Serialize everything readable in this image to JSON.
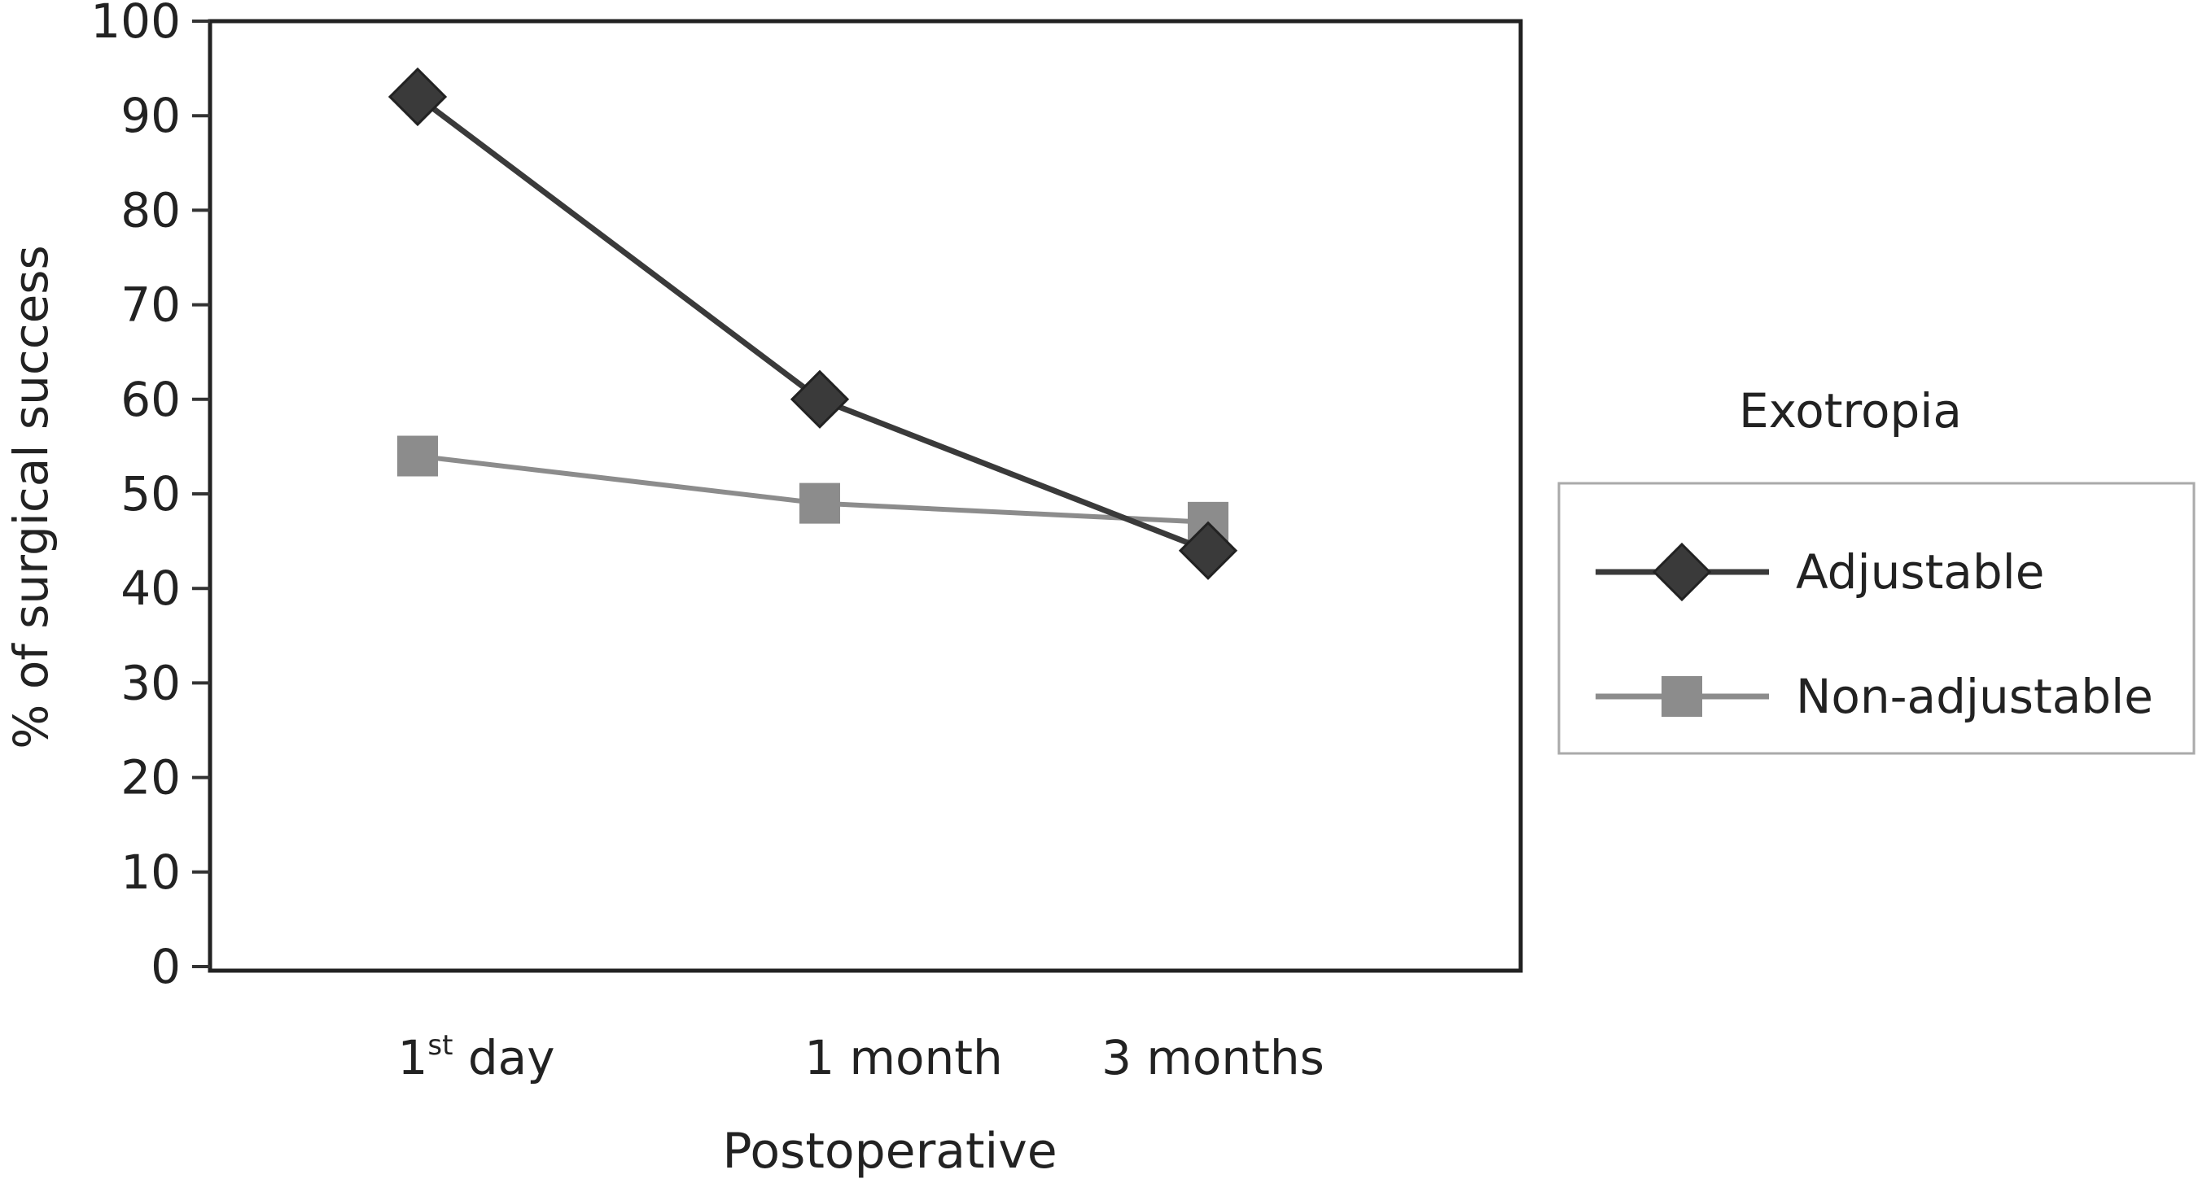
{
  "chart_data": {
    "type": "line",
    "title": "",
    "xlabel": "Postoperative",
    "ylabel": "% of surgical success",
    "categories": [
      "1st day",
      "1 month",
      "3 months"
    ],
    "category_labels": [
      {
        "main": "1",
        "sup": "st",
        "rest": " day"
      },
      {
        "main": "1 month",
        "sup": "",
        "rest": ""
      },
      {
        "main": "3 months",
        "sup": "",
        "rest": ""
      }
    ],
    "ylim": [
      0,
      100
    ],
    "yticks": [
      0,
      10,
      20,
      30,
      40,
      50,
      60,
      70,
      80,
      90,
      100
    ],
    "grid": false,
    "legend": {
      "title": "Exotropia",
      "placement": "right"
    },
    "series": [
      {
        "name": "Adjustable",
        "marker": "diamond",
        "color": "#3a3a3a",
        "values": [
          92,
          60,
          44
        ]
      },
      {
        "name": "Non-adjustable",
        "marker": "square",
        "color": "#8c8c8c",
        "values": [
          54,
          49,
          47
        ]
      }
    ]
  }
}
